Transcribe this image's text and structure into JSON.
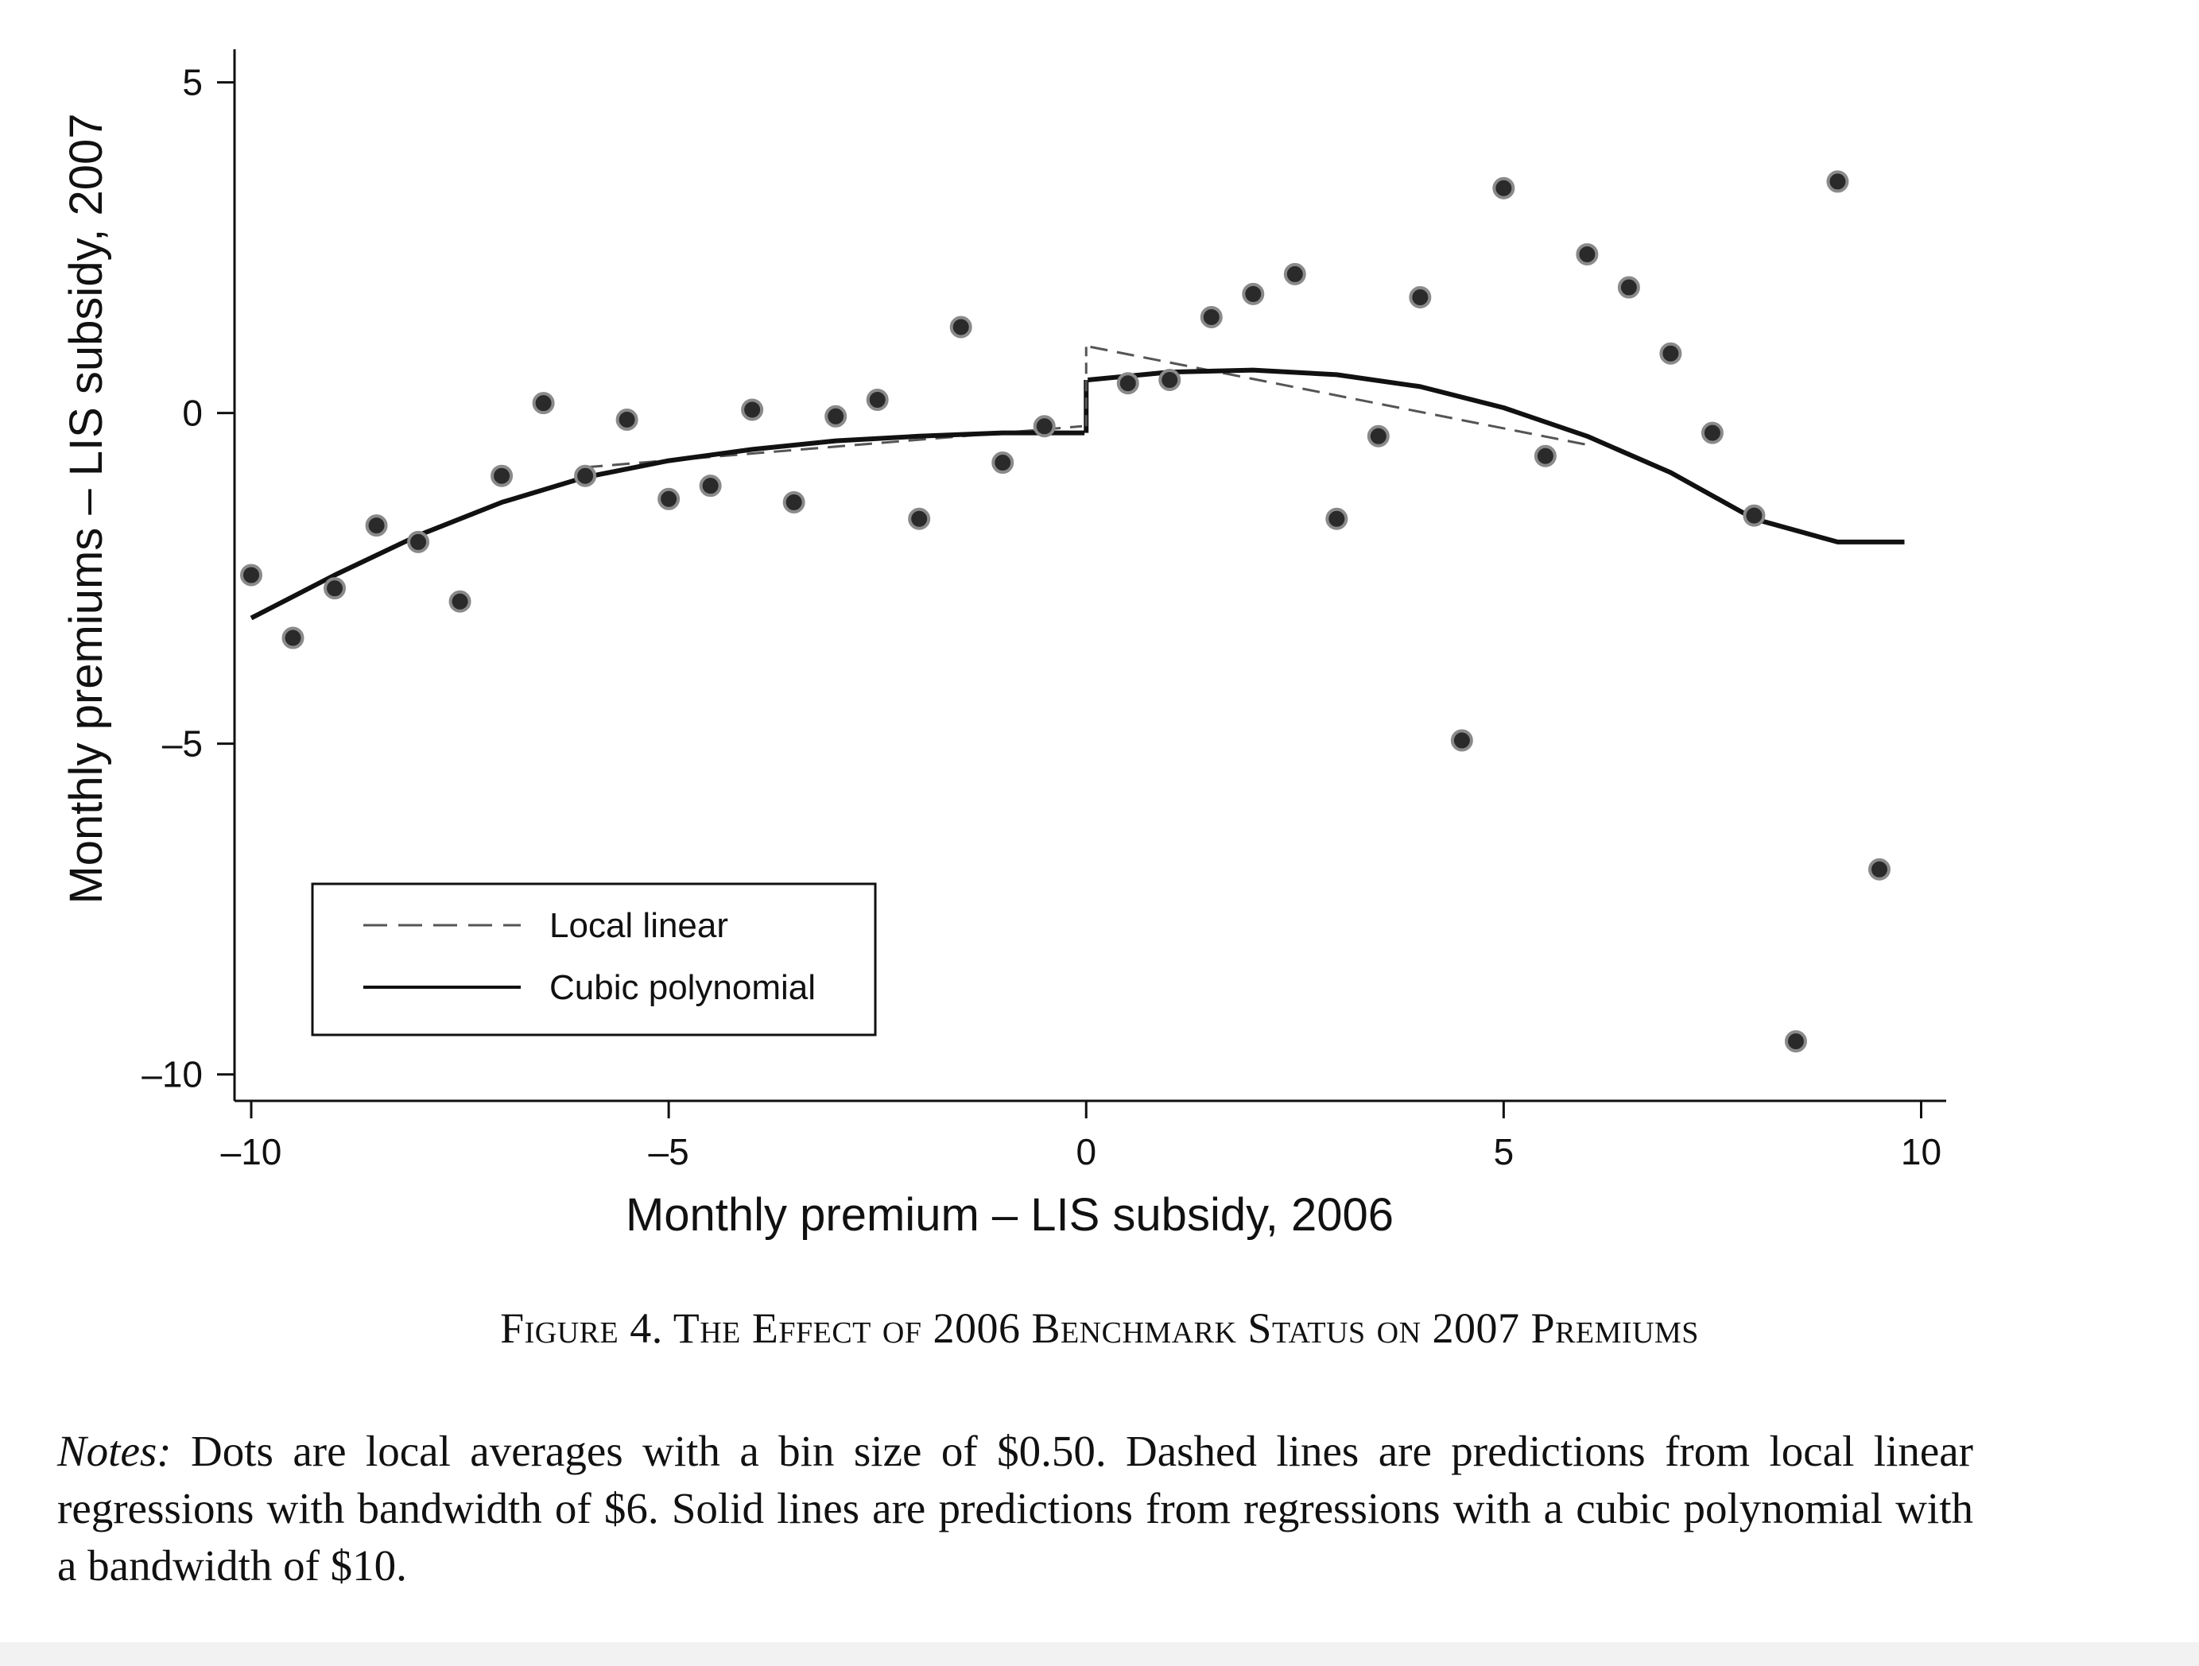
{
  "chart_data": {
    "type": "scatter",
    "xlabel": "Monthly premium – LIS subsidy, 2006",
    "ylabel": "Monthly premiums – LIS subsidy, 2007",
    "xlim": [
      -10.2,
      10.3
    ],
    "ylim": [
      -10.4,
      5.5
    ],
    "xticks": [
      -10,
      -5,
      0,
      5,
      10
    ],
    "xtick_labels": [
      "–10",
      "–5",
      "0",
      "5",
      "10"
    ],
    "yticks": [
      5,
      0,
      -5,
      -10
    ],
    "ytick_labels": [
      "5",
      "0",
      "–5",
      "–10"
    ],
    "grid": false,
    "legend_position": "bottom-left",
    "points": {
      "x": [
        -10,
        -9.5,
        -9,
        -8.5,
        -8,
        -7.5,
        -7,
        -6.5,
        -6,
        -5.5,
        -5,
        -4.5,
        -4,
        -3.5,
        -3,
        -2.5,
        -2,
        -1.5,
        -1,
        -0.5,
        0.5,
        1,
        1.5,
        2,
        2.5,
        3,
        3.5,
        4,
        4.5,
        5,
        5.5,
        6,
        6.5,
        7,
        7.5,
        8,
        8.5,
        9,
        9.5
      ],
      "y": [
        -2.45,
        -3.4,
        -2.65,
        -1.7,
        -1.95,
        -2.85,
        -0.95,
        0.15,
        -0.95,
        -0.1,
        -1.3,
        -1.1,
        0.05,
        -1.35,
        -0.05,
        0.2,
        -1.6,
        1.3,
        -0.75,
        -0.2,
        0.45,
        0.5,
        1.45,
        1.8,
        2.1,
        -1.6,
        -0.35,
        1.75,
        -4.95,
        3.4,
        -0.65,
        2.4,
        1.9,
        0.9,
        -0.3,
        -1.55,
        -9.5,
        3.5,
        -6.9
      ]
    },
    "series": [
      {
        "name": "Local linear",
        "style": "dashed",
        "segments": [
          {
            "x": [
              -6,
              -0.05
            ],
            "y": [
              -0.82,
              -0.2
            ]
          },
          {
            "x": [
              0.05,
              6
            ],
            "y": [
              1.0,
              -0.48
            ]
          }
        ]
      },
      {
        "name": "Cubic polynomial",
        "style": "solid",
        "segments": [
          {
            "x": [
              -10,
              -9,
              -8,
              -7,
              -6,
              -5,
              -4,
              -3,
              -2,
              -1,
              -0.02
            ],
            "y": [
              -3.1,
              -2.45,
              -1.85,
              -1.35,
              -0.97,
              -0.72,
              -0.55,
              -0.42,
              -0.35,
              -0.3,
              -0.3
            ]
          },
          {
            "x": [
              0.02,
              1,
              2,
              3,
              4,
              5,
              6,
              7,
              8,
              9,
              9.8
            ],
            "y": [
              0.5,
              0.62,
              0.65,
              0.58,
              0.4,
              0.08,
              -0.35,
              -0.9,
              -1.6,
              -1.95,
              -1.95
            ]
          }
        ],
        "jump": {
          "x": 0,
          "y": [
            -0.3,
            0.5
          ]
        }
      }
    ],
    "colors": {
      "points_fill": "#2a2a2a",
      "points_halo": "#8a8a8a",
      "solid_line": "#111111",
      "dashed_line": "#555555"
    }
  },
  "caption": "Figure 4. The Effect of 2006 Benchmark Status on 2007 Premiums",
  "notes": {
    "label": "Notes:",
    "text": " Dots are local averages with a bin size of $0.50. Dashed lines are predictions from local linear regressions with bandwidth of $6. Solid lines are predictions from regressions with a cubic polynomial with a bandwidth of $10."
  }
}
